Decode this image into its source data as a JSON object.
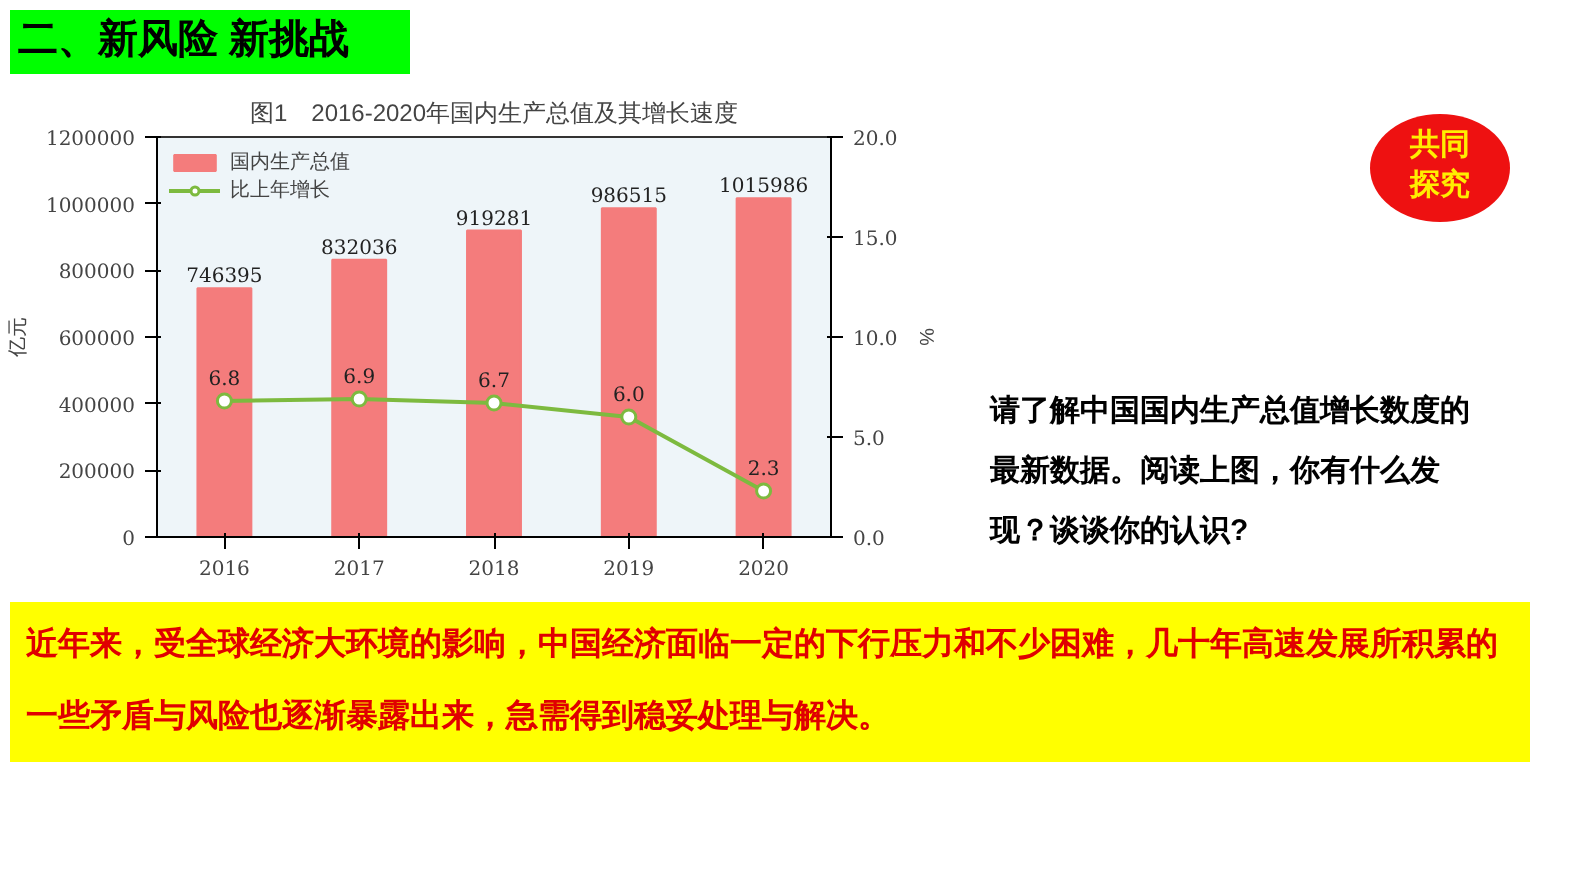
{
  "chart_data": {
    "type": "bar",
    "title": "图1　2016-2020年国内生产总值及其增长速度",
    "ylabel": "亿元",
    "y2label": "%",
    "categories": [
      "2016",
      "2017",
      "2018",
      "2019",
      "2020"
    ],
    "series": [
      {
        "name": "国内生产总值",
        "color": "#f47c7c",
        "values": [
          746395,
          832036,
          919281,
          986515,
          1015986
        ],
        "value_labels": [
          "746395",
          "832036",
          "919281",
          "986515",
          "1015986"
        ]
      },
      {
        "name": "比上年增长",
        "type": "line",
        "axis": "y2",
        "color": "#7dba3f",
        "marker": "circle",
        "values": [
          6.8,
          6.9,
          6.7,
          6.0,
          2.3
        ],
        "value_labels": [
          "6.8",
          "6.9",
          "6.7",
          "6.0",
          "2.3"
        ]
      }
    ],
    "ylim": [
      0,
      1200000
    ],
    "yticks": [
      0,
      200000,
      400000,
      600000,
      800000,
      1000000,
      1200000
    ],
    "y2lim": [
      0,
      20
    ],
    "y2ticks": [
      {
        "value": 0,
        "label": "0.0"
      },
      {
        "value": 5,
        "label": "5.0"
      },
      {
        "value": 10,
        "label": "10.0"
      },
      {
        "value": 15,
        "label": "15.0"
      },
      {
        "value": 20,
        "label": "20.0"
      }
    ],
    "legend": "top left",
    "grid": false,
    "annotations": [
      "二、新风险 新挑战",
      "共同探究",
      "请了解中国国内生产总值增长数度的最新数据。阅读上图，你有什么发现？谈谈你的认识?",
      "近年来，受全球经济大环境的影响，中国经济面临一定的下行压力和不少困难，几十年高速发展所积累的一些矛盾与风险也逐渐暴露出来，急需得到稳妥处理与解决。"
    ]
  }
}
